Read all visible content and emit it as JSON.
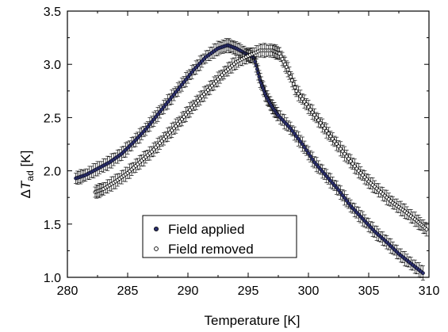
{
  "chart_data": {
    "type": "scatter",
    "xlabel": "Temperature [K]",
    "ylabel": {
      "prefix": "Δ",
      "symbol": "T",
      "subscript": "ad",
      "unit": " [K]"
    },
    "xlim": [
      280,
      310
    ],
    "ylim": [
      1.0,
      3.5
    ],
    "xticks": [
      280,
      285,
      290,
      295,
      300,
      305,
      310
    ],
    "yticks": [
      1.0,
      1.5,
      2.0,
      2.5,
      3.0,
      3.5
    ],
    "xtick_labels": [
      "280",
      "285",
      "290",
      "295",
      "300",
      "305",
      "310"
    ],
    "ytick_labels": [
      "1.0",
      "1.5",
      "2.0",
      "2.5",
      "3.0",
      "3.5"
    ],
    "grid": false,
    "legend_position": "bottom-center",
    "series": [
      {
        "name": "Field applied",
        "marker": "filled-circle",
        "color": "#2b2f6e",
        "error_bar": 0.06,
        "points": [
          [
            280.7,
            1.93
          ],
          [
            281.5,
            1.96
          ],
          [
            282.5,
            2.02
          ],
          [
            283.5,
            2.08
          ],
          [
            284.5,
            2.16
          ],
          [
            285.5,
            2.27
          ],
          [
            286.5,
            2.39
          ],
          [
            287.5,
            2.53
          ],
          [
            288.5,
            2.67
          ],
          [
            289.5,
            2.81
          ],
          [
            290.5,
            2.95
          ],
          [
            291.5,
            3.07
          ],
          [
            292.5,
            3.15
          ],
          [
            293.3,
            3.18
          ],
          [
            294.0,
            3.15
          ],
          [
            294.8,
            3.1
          ],
          [
            295.5,
            3.06
          ],
          [
            296.0,
            2.85
          ],
          [
            296.5,
            2.7
          ],
          [
            297.0,
            2.6
          ],
          [
            297.5,
            2.52
          ],
          [
            298.5,
            2.4
          ],
          [
            299.5,
            2.25
          ],
          [
            300.5,
            2.08
          ],
          [
            301.5,
            1.95
          ],
          [
            302.5,
            1.82
          ],
          [
            303.5,
            1.67
          ],
          [
            304.5,
            1.55
          ],
          [
            305.5,
            1.43
          ],
          [
            306.5,
            1.33
          ],
          [
            307.5,
            1.22
          ],
          [
            308.5,
            1.13
          ],
          [
            309.5,
            1.04
          ]
        ]
      },
      {
        "name": "Field removed",
        "marker": "open-circle",
        "color": "#000000",
        "error_bar": 0.06,
        "points": [
          [
            282.3,
            1.8
          ],
          [
            283.0,
            1.83
          ],
          [
            284.0,
            1.9
          ],
          [
            285.0,
            1.98
          ],
          [
            286.0,
            2.08
          ],
          [
            287.0,
            2.18
          ],
          [
            288.0,
            2.3
          ],
          [
            289.0,
            2.42
          ],
          [
            290.0,
            2.55
          ],
          [
            291.0,
            2.68
          ],
          [
            292.0,
            2.8
          ],
          [
            293.0,
            2.92
          ],
          [
            294.0,
            3.02
          ],
          [
            295.0,
            3.08
          ],
          [
            296.0,
            3.13
          ],
          [
            297.0,
            3.13
          ],
          [
            297.6,
            3.1
          ],
          [
            298.3,
            2.95
          ],
          [
            299.0,
            2.75
          ],
          [
            300.0,
            2.6
          ],
          [
            301.0,
            2.45
          ],
          [
            302.0,
            2.3
          ],
          [
            303.0,
            2.16
          ],
          [
            304.0,
            2.02
          ],
          [
            305.0,
            1.9
          ],
          [
            306.0,
            1.8
          ],
          [
            307.0,
            1.7
          ],
          [
            308.0,
            1.62
          ],
          [
            309.0,
            1.53
          ],
          [
            309.8,
            1.45
          ]
        ]
      }
    ]
  }
}
